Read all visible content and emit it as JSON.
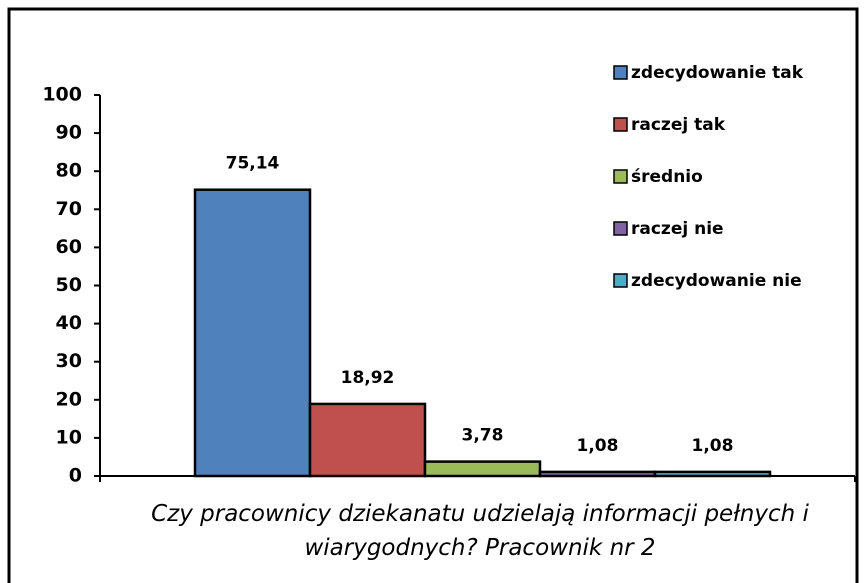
{
  "chart_data": {
    "type": "bar",
    "categories": [
      "Czy pracownicy dziekanatu udzielają informacji pełnych i wiarygodnych? Pracownik nr 2"
    ],
    "series": [
      {
        "name": "zdecydowanie tak",
        "color": "#4f81bd",
        "values": [
          75.14
        ],
        "value_labels": [
          "75,14"
        ]
      },
      {
        "name": "raczej tak",
        "color": "#c0504d",
        "values": [
          18.92
        ],
        "value_labels": [
          "18,92"
        ]
      },
      {
        "name": "średnio",
        "color": "#9bbb59",
        "values": [
          3.78
        ],
        "value_labels": [
          "3,78"
        ]
      },
      {
        "name": "raczej nie",
        "color": "#8064a2",
        "values": [
          1.08
        ],
        "value_labels": [
          "1,08"
        ]
      },
      {
        "name": "zdecydowanie nie",
        "color": "#4bacc6",
        "values": [
          1.08
        ],
        "value_labels": [
          "1,08"
        ]
      }
    ],
    "ylim": [
      0,
      100
    ],
    "yticks": [
      0,
      10,
      20,
      30,
      40,
      50,
      60,
      70,
      80,
      90,
      100
    ],
    "grid": false,
    "legend": "top-right"
  }
}
